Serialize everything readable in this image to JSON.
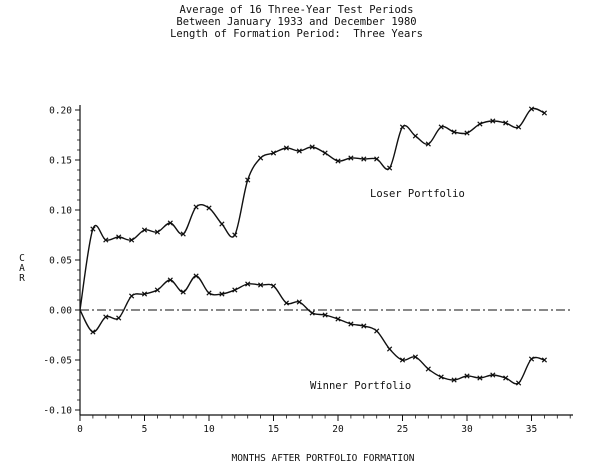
{
  "chart_data": {
    "type": "line",
    "title_lines": [
      "Average of 16 Three-Year Test Periods",
      "Between January 1933 and December 1980",
      "Length of Formation Period:  Three Years"
    ],
    "xlabel": "MONTHS AFTER PORTFOLIO FORMATION",
    "ylabel": "CAR",
    "xlim": [
      0,
      38
    ],
    "ylim": [
      -0.1,
      0.2
    ],
    "x_ticks": [
      0,
      5,
      10,
      15,
      20,
      25,
      30,
      35
    ],
    "x_tick_labels": [
      "0",
      "5",
      "10",
      "15",
      "20",
      "25",
      "30",
      "35"
    ],
    "y_ticks": [
      0.2,
      0.15,
      0.1,
      0.05,
      0.0,
      -0.05,
      -0.1
    ],
    "y_tick_labels": [
      "0.20",
      "0.15",
      "0.10",
      "0.05",
      "0.00",
      "-0.05",
      "-0.10"
    ],
    "zero_line": "dash-dot",
    "grid": false,
    "series": [
      {
        "name": "Loser Portfolio",
        "x": [
          0,
          1,
          2,
          3,
          4,
          5,
          6,
          7,
          8,
          9,
          10,
          11,
          12,
          13,
          14,
          15,
          16,
          17,
          18,
          19,
          20,
          21,
          22,
          23,
          24,
          25,
          26,
          27,
          28,
          29,
          30,
          31,
          32,
          33,
          34,
          35,
          36
        ],
        "values": [
          0.0,
          0.081,
          0.07,
          0.073,
          0.07,
          0.08,
          0.078,
          0.087,
          0.076,
          0.103,
          0.102,
          0.086,
          0.075,
          0.13,
          0.152,
          0.157,
          0.162,
          0.159,
          0.163,
          0.157,
          0.149,
          0.152,
          0.151,
          0.151,
          0.142,
          0.183,
          0.174,
          0.166,
          0.183,
          0.178,
          0.177,
          0.186,
          0.189,
          0.187,
          0.183,
          0.201,
          0.197
        ]
      },
      {
        "name": "Winner Portfolio",
        "x": [
          0,
          1,
          2,
          3,
          4,
          5,
          6,
          7,
          8,
          9,
          10,
          11,
          12,
          13,
          14,
          15,
          16,
          17,
          18,
          19,
          20,
          21,
          22,
          23,
          24,
          25,
          26,
          27,
          28,
          29,
          30,
          31,
          32,
          33,
          34,
          35,
          36
        ],
        "values": [
          0.0,
          -0.022,
          -0.007,
          -0.008,
          0.014,
          0.016,
          0.02,
          0.03,
          0.018,
          0.034,
          0.017,
          0.016,
          0.02,
          0.026,
          0.025,
          0.024,
          0.007,
          0.008,
          -0.003,
          -0.005,
          -0.009,
          -0.014,
          -0.016,
          -0.021,
          -0.039,
          -0.05,
          -0.047,
          -0.059,
          -0.067,
          -0.07,
          -0.066,
          -0.068,
          -0.065,
          -0.068,
          -0.073,
          -0.049,
          -0.05
        ]
      }
    ]
  }
}
